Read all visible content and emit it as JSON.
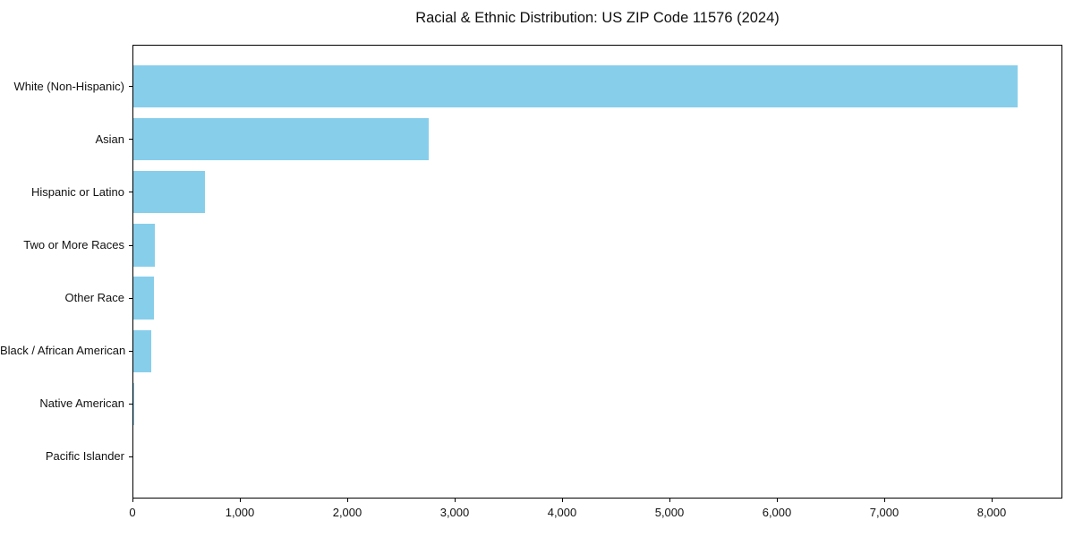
{
  "window": {
    "background_color": "#FFFFFF"
  },
  "chart_data": {
    "type": "bar",
    "orientation": "horizontal",
    "title": "Racial & Ethnic Distribution: US ZIP Code 11576 (2024)",
    "xlabel": "",
    "ylabel": "",
    "grid": false,
    "legend": null,
    "bar_color": "#87CEEB",
    "axis_color": "#000000",
    "categories": [
      "White (Non-Hispanic)",
      "Asian",
      "Hispanic or Latino",
      "Two or More Races",
      "Other Race",
      "Black / African American",
      "Native American",
      "Pacific Islander"
    ],
    "values": [
      8230,
      2750,
      670,
      200,
      190,
      165,
      5,
      0
    ],
    "xlim": [
      0,
      8650
    ],
    "x_ticks": {
      "values": [
        0,
        1000,
        2000,
        3000,
        4000,
        5000,
        6000,
        7000,
        8000
      ],
      "labels": [
        "0",
        "1,000",
        "2,000",
        "3,000",
        "4,000",
        "5,000",
        "6,000",
        "7,000",
        "8,000"
      ]
    }
  }
}
